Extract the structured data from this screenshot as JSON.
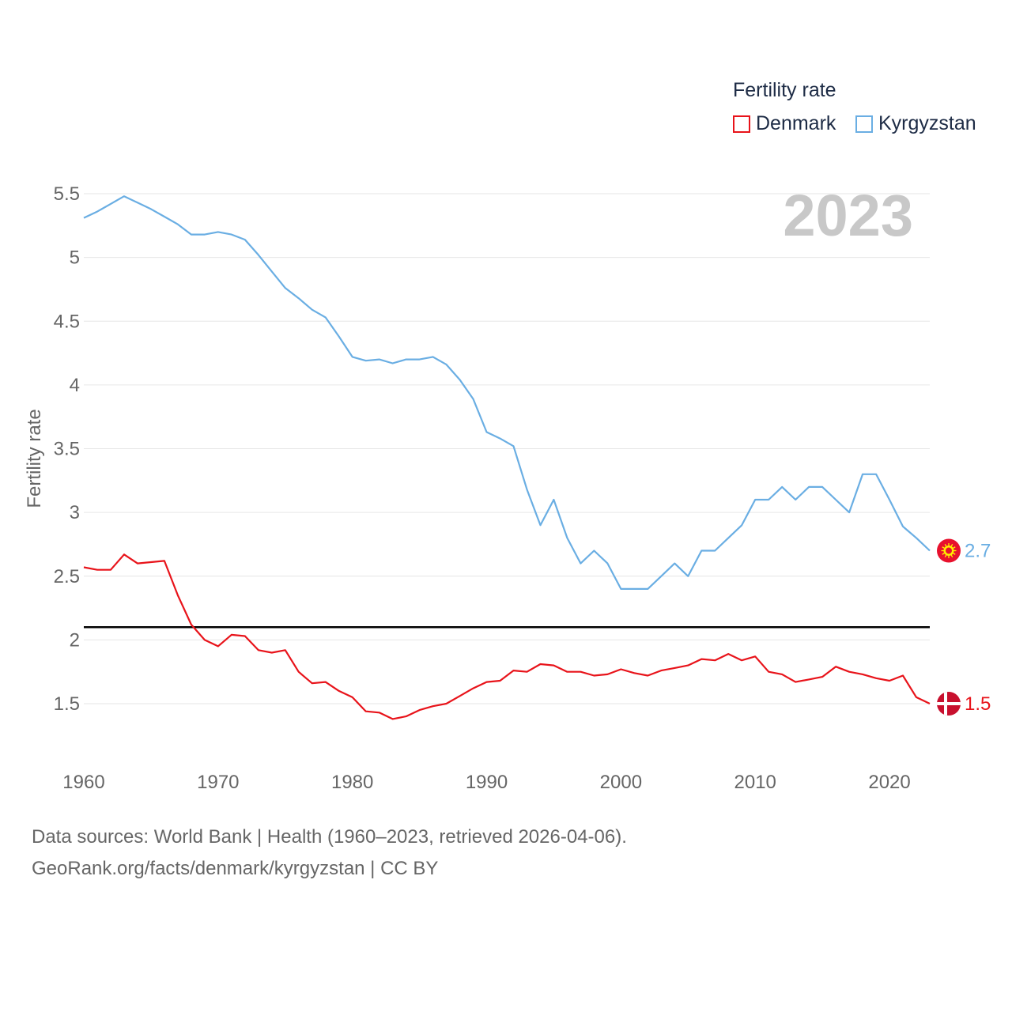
{
  "legend": {
    "title": "Fertility rate",
    "items": [
      {
        "label": "Denmark",
        "color": "#e8131a"
      },
      {
        "label": "Kyrgyzstan",
        "color": "#6aaee3"
      }
    ]
  },
  "footer": {
    "line1": "Data sources: World Bank | Health (1960–2023, retrieved 2026-04-06).",
    "line2": "GeoRank.org/facts/denmark/kyrgyzstan | CC BY"
  },
  "chart_data": {
    "type": "line",
    "title": "",
    "watermark_year": "2023",
    "xlabel": "",
    "ylabel": "Fertility rate",
    "xlim": [
      1960,
      2023
    ],
    "ylim": [
      1.0,
      5.5
    ],
    "x_ticks": [
      "1960",
      "1970",
      "1980",
      "1990",
      "2000",
      "2010",
      "2020"
    ],
    "y_ticks": [
      "5.5",
      "5",
      "4.5",
      "4",
      "3.5",
      "3",
      "2.5",
      "2",
      "1.5"
    ],
    "reference_line": {
      "y": 2.1,
      "color": "#000000"
    },
    "x": [
      1960,
      1961,
      1962,
      1963,
      1964,
      1965,
      1966,
      1967,
      1968,
      1969,
      1970,
      1971,
      1972,
      1973,
      1974,
      1975,
      1976,
      1977,
      1978,
      1979,
      1980,
      1981,
      1982,
      1983,
      1984,
      1985,
      1986,
      1987,
      1988,
      1989,
      1990,
      1991,
      1992,
      1993,
      1994,
      1995,
      1996,
      1997,
      1998,
      1999,
      2000,
      2001,
      2002,
      2003,
      2004,
      2005,
      2006,
      2007,
      2008,
      2009,
      2010,
      2011,
      2012,
      2013,
      2014,
      2015,
      2016,
      2017,
      2018,
      2019,
      2020,
      2021,
      2022,
      2023
    ],
    "series": [
      {
        "name": "Denmark",
        "color": "#e8131a",
        "end_label": "1.5",
        "flag": "denmark-flag",
        "values": [
          2.57,
          2.55,
          2.55,
          2.67,
          2.6,
          2.61,
          2.62,
          2.35,
          2.12,
          2.0,
          1.95,
          2.04,
          2.03,
          1.92,
          1.9,
          1.92,
          1.75,
          1.66,
          1.67,
          1.6,
          1.55,
          1.44,
          1.43,
          1.38,
          1.4,
          1.45,
          1.48,
          1.5,
          1.56,
          1.62,
          1.67,
          1.68,
          1.76,
          1.75,
          1.81,
          1.8,
          1.75,
          1.75,
          1.72,
          1.73,
          1.77,
          1.74,
          1.72,
          1.76,
          1.78,
          1.8,
          1.85,
          1.84,
          1.89,
          1.84,
          1.87,
          1.75,
          1.73,
          1.67,
          1.69,
          1.71,
          1.79,
          1.75,
          1.73,
          1.7,
          1.68,
          1.72,
          1.55,
          1.5
        ]
      },
      {
        "name": "Kyrgyzstan",
        "color": "#6aaee3",
        "end_label": "2.7",
        "flag": "kyrgyzstan-flag",
        "values": [
          5.31,
          5.36,
          5.42,
          5.48,
          5.43,
          5.38,
          5.32,
          5.26,
          5.18,
          5.18,
          5.2,
          5.18,
          5.14,
          5.02,
          4.89,
          4.76,
          4.68,
          4.59,
          4.53,
          4.38,
          4.22,
          4.19,
          4.2,
          4.17,
          4.2,
          4.2,
          4.22,
          4.16,
          4.04,
          3.89,
          3.63,
          3.58,
          3.52,
          3.18,
          2.9,
          3.1,
          2.8,
          2.6,
          2.7,
          2.6,
          2.4,
          2.4,
          2.4,
          2.5,
          2.6,
          2.5,
          2.7,
          2.7,
          2.8,
          2.9,
          3.1,
          3.1,
          3.2,
          3.1,
          3.2,
          3.2,
          3.1,
          3.0,
          3.3,
          3.3,
          3.1,
          2.89,
          2.8,
          2.7
        ]
      }
    ]
  }
}
